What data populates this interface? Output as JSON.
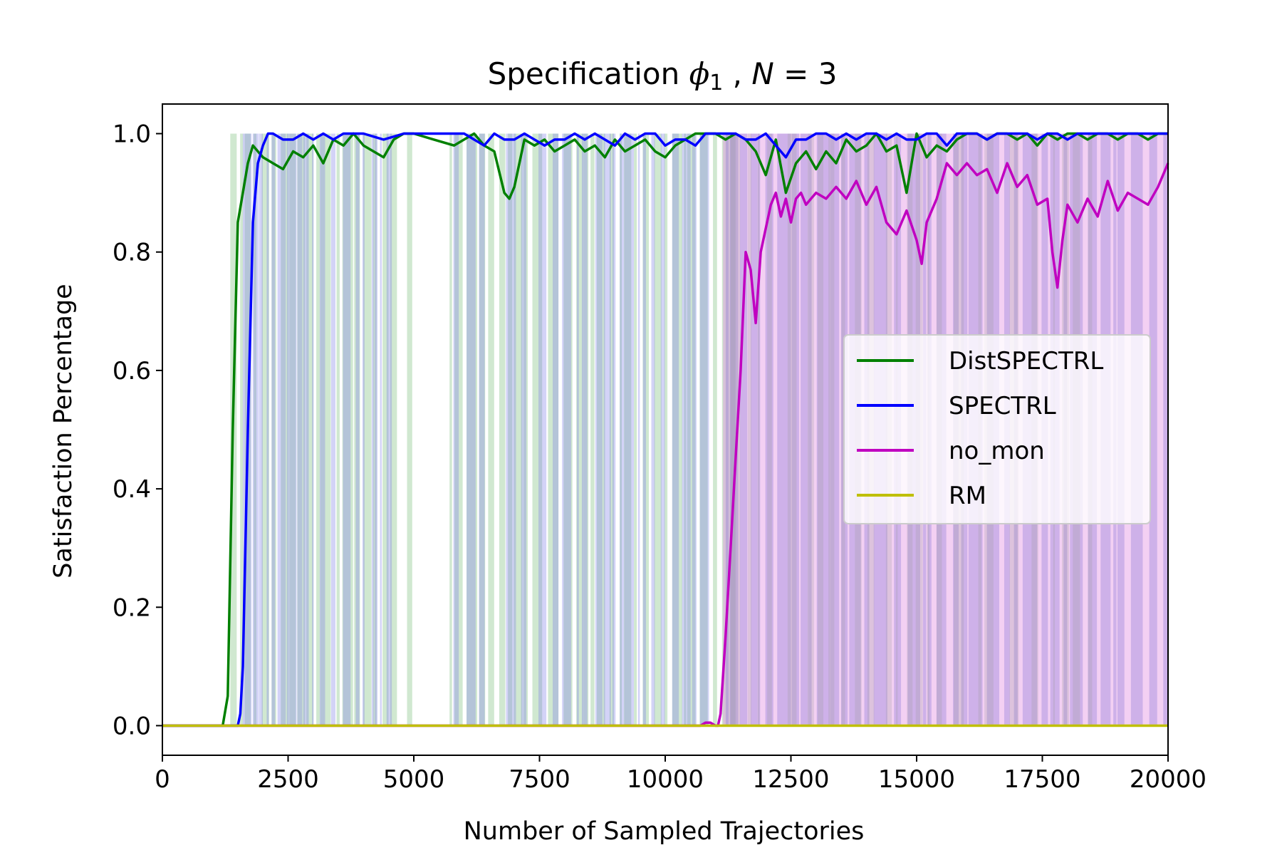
{
  "chart_data": {
    "type": "line",
    "title_prefix": "Specification ",
    "title_symbol": "ϕ",
    "title_subscript": "1",
    "title_suffix": " , ",
    "title_n_var": "N",
    "title_n_eq": " = 3",
    "xlabel": "Number of Sampled Trajectories",
    "ylabel": "Satisfaction Percentage",
    "xlim": [
      0,
      20000
    ],
    "ylim": [
      -0.05,
      1.05
    ],
    "xticks": [
      0,
      2500,
      5000,
      7500,
      10000,
      12500,
      15000,
      17500,
      20000
    ],
    "yticks": [
      0.0,
      0.2,
      0.4,
      0.6,
      0.8,
      1.0
    ],
    "xtick_labels": [
      "0",
      "2500",
      "5000",
      "7500",
      "10000",
      "12500",
      "15000",
      "17500",
      "20000"
    ],
    "ytick_labels": [
      "0.0",
      "0.2",
      "0.4",
      "0.6",
      "0.8",
      "1.0"
    ],
    "legend_position": "center-right",
    "grid": false,
    "series": [
      {
        "name": "DistSPECTRL",
        "color": "#008000",
        "x": [
          0,
          1200,
          1300,
          1400,
          1500,
          1600,
          1700,
          1800,
          1900,
          2000,
          2200,
          2400,
          2600,
          2800,
          3000,
          3200,
          3400,
          3600,
          3800,
          4000,
          4200,
          4400,
          4600,
          4800,
          5000,
          5400,
          5800,
          6000,
          6200,
          6400,
          6600,
          6800,
          6900,
          7000,
          7200,
          7400,
          7600,
          7800,
          8000,
          8200,
          8400,
          8600,
          8800,
          9000,
          9200,
          9400,
          9600,
          9800,
          10000,
          10200,
          10400,
          10600,
          10800,
          11000,
          11200,
          11400,
          11600,
          11800,
          12000,
          12200,
          12400,
          12600,
          12800,
          13000,
          13200,
          13400,
          13600,
          13800,
          14000,
          14200,
          14400,
          14600,
          14800,
          15000,
          15200,
          15400,
          15600,
          15800,
          16000,
          16200,
          16400,
          16600,
          16800,
          17000,
          17200,
          17400,
          17600,
          17800,
          18000,
          18200,
          18400,
          18600,
          18800,
          19000,
          19200,
          19400,
          19600,
          19800,
          20000
        ],
        "y": [
          0,
          0,
          0.05,
          0.5,
          0.85,
          0.9,
          0.95,
          0.98,
          0.97,
          0.96,
          0.95,
          0.94,
          0.97,
          0.96,
          0.98,
          0.95,
          0.99,
          0.98,
          1.0,
          0.98,
          0.97,
          0.96,
          0.99,
          1.0,
          1.0,
          0.99,
          0.98,
          0.99,
          1.0,
          0.98,
          0.97,
          0.9,
          0.89,
          0.91,
          0.99,
          0.98,
          0.99,
          0.97,
          0.98,
          0.99,
          0.97,
          0.98,
          0.96,
          0.99,
          0.97,
          0.98,
          0.99,
          0.97,
          0.96,
          0.98,
          0.99,
          1.0,
          1.0,
          1.0,
          0.99,
          1.0,
          0.99,
          0.97,
          0.93,
          0.99,
          0.9,
          0.95,
          0.97,
          0.94,
          0.97,
          0.95,
          0.99,
          0.97,
          0.98,
          1.0,
          0.97,
          0.98,
          0.9,
          1.0,
          0.96,
          0.98,
          0.97,
          0.99,
          1.0,
          1.0,
          0.99,
          1.0,
          1.0,
          0.99,
          1.0,
          0.98,
          1.0,
          0.99,
          1.0,
          1.0,
          0.99,
          1.0,
          1.0,
          0.99,
          1.0,
          1.0,
          0.99,
          1.0,
          1.0
        ]
      },
      {
        "name": "SPECTRL",
        "color": "#0000ff",
        "x": [
          0,
          1500,
          1550,
          1600,
          1700,
          1800,
          1900,
          2000,
          2100,
          2200,
          2400,
          2600,
          2800,
          3000,
          3200,
          3400,
          3600,
          4000,
          4400,
          4800,
          5200,
          5600,
          6000,
          6200,
          6400,
          6600,
          6800,
          7000,
          7200,
          7400,
          7600,
          7800,
          8000,
          8200,
          8400,
          8600,
          8800,
          9000,
          9200,
          9400,
          9600,
          9800,
          10000,
          10200,
          10400,
          10600,
          10800,
          11000,
          11200,
          11400,
          11600,
          11800,
          12000,
          12200,
          12400,
          12600,
          12800,
          13000,
          13200,
          13400,
          13600,
          13800,
          14000,
          14200,
          14400,
          14600,
          14800,
          15000,
          15200,
          15400,
          15600,
          15800,
          16000,
          16200,
          16400,
          16600,
          16800,
          17000,
          17200,
          17400,
          17600,
          17800,
          18000,
          18200,
          18400,
          18600,
          18800,
          19000,
          19200,
          19400,
          19600,
          19800,
          20000
        ],
        "y": [
          0,
          0,
          0.02,
          0.1,
          0.5,
          0.85,
          0.95,
          0.98,
          1.0,
          1.0,
          0.99,
          0.99,
          1.0,
          0.99,
          1.0,
          0.99,
          1.0,
          1.0,
          0.99,
          1.0,
          1.0,
          1.0,
          1.0,
          0.99,
          0.98,
          1.0,
          0.99,
          0.99,
          1.0,
          0.99,
          0.98,
          0.99,
          0.99,
          1.0,
          0.99,
          1.0,
          0.99,
          0.98,
          1.0,
          0.99,
          1.0,
          1.0,
          0.98,
          0.99,
          0.99,
          0.98,
          1.0,
          1.0,
          1.0,
          1.0,
          0.99,
          0.99,
          1.0,
          0.98,
          0.96,
          0.99,
          0.99,
          1.0,
          1.0,
          0.99,
          1.0,
          0.99,
          1.0,
          1.0,
          0.99,
          1.0,
          0.99,
          0.99,
          1.0,
          1.0,
          0.98,
          1.0,
          1.0,
          1.0,
          0.99,
          1.0,
          1.0,
          1.0,
          1.0,
          0.99,
          1.0,
          1.0,
          0.99,
          1.0,
          1.0,
          1.0,
          1.0,
          1.0,
          1.0,
          1.0,
          1.0,
          1.0,
          1.0
        ]
      },
      {
        "name": "no_mon",
        "color": "#c000c0",
        "x": [
          0,
          10600,
          10700,
          10800,
          10900,
          11000,
          11050,
          11100,
          11200,
          11300,
          11400,
          11500,
          11600,
          11700,
          11800,
          11900,
          12000,
          12100,
          12200,
          12300,
          12400,
          12500,
          12600,
          12700,
          12800,
          12900,
          13000,
          13200,
          13400,
          13600,
          13800,
          14000,
          14200,
          14400,
          14600,
          14800,
          15000,
          15100,
          15200,
          15400,
          15600,
          15800,
          16000,
          16200,
          16400,
          16600,
          16800,
          17000,
          17200,
          17400,
          17600,
          17700,
          17800,
          17900,
          18000,
          18200,
          18400,
          18600,
          18800,
          19000,
          19200,
          19400,
          19600,
          19800,
          20000
        ],
        "y": [
          0,
          0,
          0,
          0.005,
          0.005,
          0,
          0,
          0.02,
          0.15,
          0.3,
          0.45,
          0.6,
          0.8,
          0.77,
          0.68,
          0.8,
          0.84,
          0.88,
          0.9,
          0.86,
          0.89,
          0.85,
          0.89,
          0.9,
          0.88,
          0.89,
          0.9,
          0.89,
          0.91,
          0.89,
          0.92,
          0.88,
          0.91,
          0.85,
          0.83,
          0.87,
          0.82,
          0.78,
          0.85,
          0.89,
          0.95,
          0.93,
          0.95,
          0.93,
          0.94,
          0.9,
          0.95,
          0.91,
          0.93,
          0.88,
          0.89,
          0.8,
          0.74,
          0.82,
          0.88,
          0.85,
          0.89,
          0.86,
          0.92,
          0.87,
          0.9,
          0.89,
          0.88,
          0.91,
          0.95
        ]
      },
      {
        "name": "RM",
        "color": "#bfbf00",
        "x": [
          0,
          20000
        ],
        "y": [
          0,
          0
        ]
      }
    ]
  }
}
